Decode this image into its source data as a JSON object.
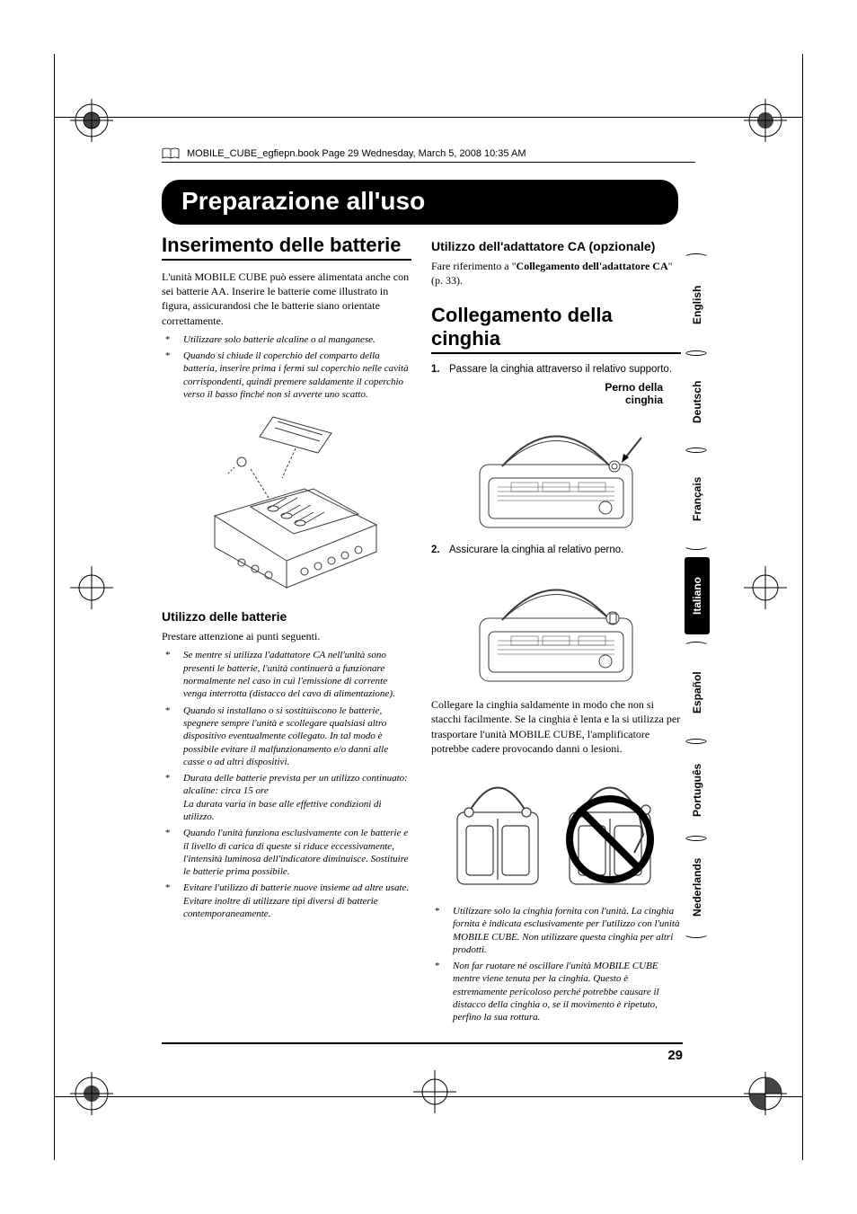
{
  "header_text": "MOBILE_CUBE_egfiepn.book  Page 29  Wednesday, March 5, 2008  10:35 AM",
  "main_title": "Preparazione all'uso",
  "section_batteries_title": "Inserimento delle batterie",
  "intro_para": "L'unità MOBILE CUBE può essere alimentata anche con sei batterie AA. Inserire le batterie come illustrato in figura, assicurandosi che le batterie siano orientate correttamente.",
  "note_alkaline": "Utilizzare solo batterie alcaline o al manganese.",
  "note_cover": "Quando si chiude il coperchio del comparto della batteria, inserire prima i fermi sul coperchio nelle cavità corrispondenti, quindi premere saldamente il coperchio verso il basso finché non si avverte uno scatto.",
  "sub_battery_usage": "Utilizzo delle batterie",
  "usage_lead": "Prestare attenzione ai punti seguenti.",
  "usage_n1": "Se mentre si utilizza l'adattatore CA nell'unità sono presenti le batterie, l'unità continuerà a funzionare normalmente nel caso in cui l'emissione di corrente venga interrotta (distacco del cavo di alimentazione).",
  "usage_n2": "Quando si installano o si sostituiscono le batterie, spegnere sempre l'unità e scollegare qualsiasi altro dispositivo eventualmente collegato. In tal modo è possibile evitare il malfunzionamento e/o danni alle casse o ad altri dispositivi.",
  "usage_n3": "Durata delle batterie prevista per un utilizzo continuato:\nalcaline: circa 15 ore\nLa durata varia in base alle effettive condizioni di utilizzo.",
  "usage_n4": "Quando l'unità funziona esclusivamente con le batterie e il livello di carica di queste si riduce eccessivamente, l'intensità luminosa dell'indicatore diminuisce. Sostituire le batterie prima possibile.",
  "usage_n5": "Evitare l'utilizzo di batterie nuove insieme ad altre usate. Evitare inoltre di utilizzare tipi diversi di batterie contemporaneamente.",
  "sub_adapter": "Utilizzo dell'adattatore CA (opzionale)",
  "adapter_text_pre": "Fare riferimento a \"",
  "adapter_text_bold": "Collegamento dell'adattatore CA",
  "adapter_text_post": "\" (p. 33).",
  "section_strap_title": "Collegamento della cinghia",
  "step1": "Passare la cinghia attraverso il relativo supporto.",
  "fig1_label_l1": "Perno della",
  "fig1_label_l2": "cinghia",
  "step2": "Assicurare la cinghia al relativo perno.",
  "strap_para": "Collegare la cinghia saldamente in modo che non si stacchi facilmente. Se la cinghia è lenta e la si utilizza per trasportare l'unità MOBILE CUBE, l'amplificatore potrebbe cadere provocando danni o lesioni.",
  "strap_n1": "Utilizzare solo la cinghia fornita con l'unità. La cinghia fornita è indicata esclusivamente per l'utilizzo con l'unità MOBILE CUBE. Non utilizzare questa cinghia per altri prodotti.",
  "strap_n2": "Non far ruotare né oscillare l'unità MOBILE CUBE mentre viene tenuta per la cinghia. Questo è estremamente pericoloso perché potrebbe causare il distacco della cinghia o, se il movimento è ripetuto, perfino la sua rottura.",
  "page_number": "29",
  "languages": [
    "English",
    "Deutsch",
    "Français",
    "Italiano",
    "Español",
    "Português",
    "Nederlands"
  ],
  "active_language": "Italiano",
  "colors": {
    "black": "#000000",
    "white": "#ffffff",
    "figure_stroke": "#3a3a3a"
  }
}
